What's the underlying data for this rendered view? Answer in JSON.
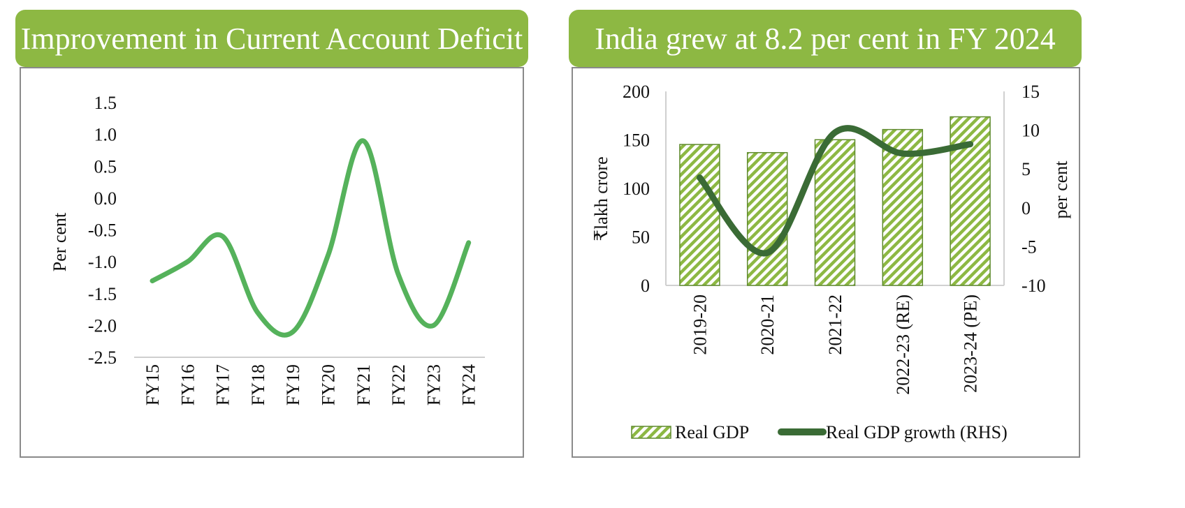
{
  "colors": {
    "header_bg": "#8db843",
    "cad_line": "#55b25b",
    "bar_fill": "#8db843",
    "gdp_growth_line": "#3a6b35"
  },
  "chart_data": [
    {
      "type": "line",
      "title": "Improvement in Current Account Deficit",
      "ylabel": "Per cent",
      "xlabel": "",
      "categories": [
        "FY15",
        "FY16",
        "FY17",
        "FY18",
        "FY19",
        "FY20",
        "FY21",
        "FY22",
        "FY23",
        "FY24"
      ],
      "series": [
        {
          "values": [
            -1.3,
            -1.0,
            -0.6,
            -1.8,
            -2.1,
            -0.9,
            0.9,
            -1.2,
            -2.0,
            -0.7
          ]
        }
      ],
      "ylim": [
        -2.5,
        1.5
      ],
      "yticks": [
        "1.5",
        "1.0",
        "0.5",
        "0.0",
        "-0.5",
        "-1.0",
        "-1.5",
        "-2.0",
        "-2.5"
      ],
      "grid": false
    },
    {
      "type": "bar",
      "title": "India grew at 8.2 per cent in FY 2024",
      "ylabel": "₹lakh crore",
      "y2label": "per cent",
      "categories": [
        "2019-20",
        "2020-21",
        "2021-22",
        "2022-23 (RE)",
        "2023-24 (PE)"
      ],
      "series": [
        {
          "name": "Real GDP",
          "type": "bar",
          "axis": "left",
          "values": [
            145.3,
            136.9,
            150.2,
            160.7,
            173.8
          ]
        },
        {
          "name": "Real GDP growth (RHS)",
          "type": "line",
          "axis": "right",
          "values": [
            3.9,
            -5.8,
            9.7,
            7.0,
            8.2
          ]
        }
      ],
      "ylim": [
        0,
        200
      ],
      "y2lim": [
        -10,
        15
      ],
      "yticks": [
        "200",
        "150",
        "100",
        "50",
        "0"
      ],
      "y2ticks": [
        "15",
        "10",
        "5",
        "0",
        "-5",
        "-10"
      ],
      "legend": "bottom",
      "grid": false
    }
  ]
}
